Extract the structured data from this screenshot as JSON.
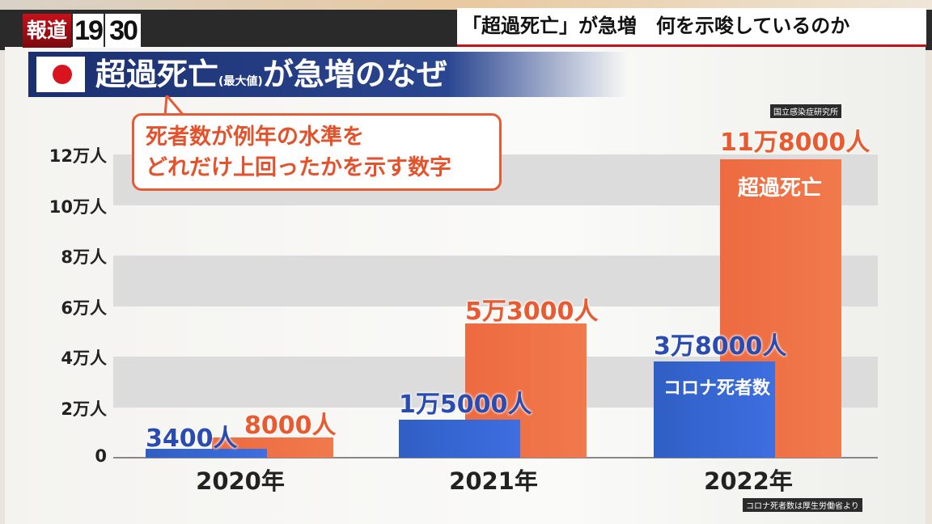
{
  "header": {
    "logo_text": "報道",
    "logo_num1": "19",
    "logo_num2": "30",
    "headline": "「超過死亡」が急増　何を示唆しているのか"
  },
  "banner": {
    "title_main": "超過死亡",
    "title_small": "(最大値)",
    "title_rest": "が急増のなぜ",
    "flag_icon": "japan-flag-icon"
  },
  "callout": {
    "line1": "死者数が例年の水準を",
    "line2": "どれだけ上回ったかを示す数字"
  },
  "sources": {
    "excess": "国立感染症研究所",
    "covid": "コロナ死者数は厚生労働省より"
  },
  "colors": {
    "covid": "#3565d0",
    "excess": "#ee6a40"
  },
  "chart_data": {
    "type": "bar",
    "title": "超過死亡(最大値)が急増のなぜ",
    "categories": [
      "2020年",
      "2021年",
      "2022年"
    ],
    "ylim": [
      0,
      120000
    ],
    "yticks": [
      0,
      20000,
      40000,
      60000,
      80000,
      100000,
      120000
    ],
    "ytick_labels": [
      "0",
      "2万人",
      "4万人",
      "6万人",
      "8万人",
      "10万人",
      "12万人"
    ],
    "series": [
      {
        "name": "コロナ死者数",
        "values": [
          3400,
          15000,
          38000
        ],
        "labels": [
          "3400人",
          "1万5000人",
          "3万8000人"
        ]
      },
      {
        "name": "超過死亡",
        "values": [
          8000,
          53000,
          118000
        ],
        "labels": [
          "8000人",
          "5万3000人",
          "11万8000人"
        ]
      }
    ],
    "grid": "horizontal bands"
  }
}
